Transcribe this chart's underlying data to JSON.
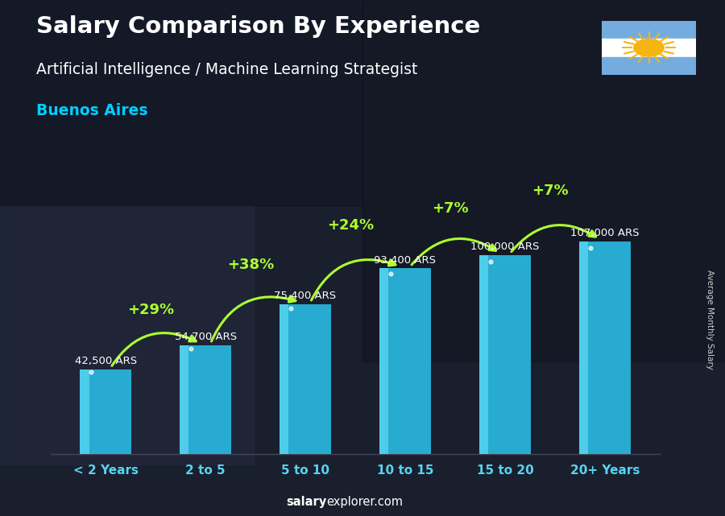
{
  "title": "Salary Comparison By Experience",
  "subtitle": "Artificial Intelligence / Machine Learning Strategist",
  "city": "Buenos Aires",
  "categories": [
    "< 2 Years",
    "2 to 5",
    "5 to 10",
    "10 to 15",
    "15 to 20",
    "20+ Years"
  ],
  "values": [
    42500,
    54700,
    75400,
    93400,
    100000,
    107000
  ],
  "labels": [
    "42,500 ARS",
    "54,700 ARS",
    "75,400 ARS",
    "93,400 ARS",
    "100,000 ARS",
    "107,000 ARS"
  ],
  "pct_changes": [
    null,
    "+29%",
    "+38%",
    "+24%",
    "+7%",
    "+7%"
  ],
  "bar_color_main": "#29B8E0",
  "bar_color_light": "#55D4F0",
  "bar_color_dark": "#1A8AAF",
  "background_color": "#1C2233",
  "title_color": "#FFFFFF",
  "subtitle_color": "#FFFFFF",
  "city_color": "#00CFFF",
  "label_color": "#FFFFFF",
  "pct_color": "#ADFF2F",
  "arrow_color": "#ADFF2F",
  "tick_color": "#55D4F0",
  "footer_bold": "salary",
  "footer_normal": "explorer.com",
  "side_label": "Average Monthly Salary",
  "ylim": [
    0,
    135000
  ],
  "flag_colors": [
    "#74ACDF",
    "#FFFFFF",
    "#74ACDF"
  ],
  "sun_color": "#F6B40E"
}
